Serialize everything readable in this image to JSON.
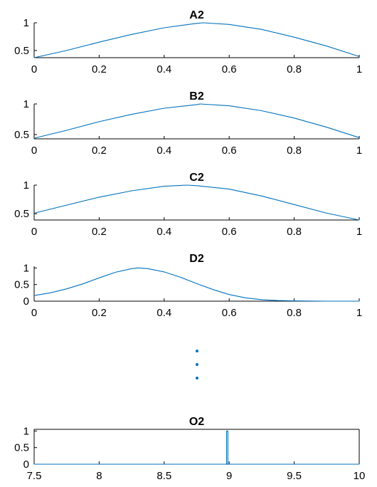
{
  "colors": {
    "line": "#0072BD",
    "axes": "#000000"
  },
  "ellipsis": {
    "dots": 3
  },
  "chart_data": [
    {
      "type": "line",
      "title": "A2",
      "xlim": [
        0,
        1
      ],
      "ylim": [
        0.37,
        1.0
      ],
      "xticks": [
        0,
        0.2,
        0.4,
        0.6,
        0.8,
        1
      ],
      "xtick_labels": [
        "0",
        "0.2",
        "0.4",
        "0.6",
        "0.8",
        "1"
      ],
      "yticks": [
        0.5,
        1
      ],
      "ytick_labels": [
        "0.5",
        "1"
      ],
      "x": [
        0,
        0.1,
        0.2,
        0.3,
        0.4,
        0.5,
        0.52,
        0.6,
        0.7,
        0.8,
        0.9,
        1.0
      ],
      "y": [
        0.37,
        0.5,
        0.65,
        0.79,
        0.91,
        0.99,
        1.0,
        0.97,
        0.88,
        0.74,
        0.58,
        0.39
      ]
    },
    {
      "type": "line",
      "title": "B2",
      "xlim": [
        0,
        1
      ],
      "ylim": [
        0.43,
        1.0
      ],
      "xticks": [
        0,
        0.2,
        0.4,
        0.6,
        0.8,
        1
      ],
      "xtick_labels": [
        "0",
        "0.2",
        "0.4",
        "0.6",
        "0.8",
        "1"
      ],
      "yticks": [
        0.5,
        1
      ],
      "ytick_labels": [
        "0.5",
        "1"
      ],
      "x": [
        0,
        0.1,
        0.2,
        0.3,
        0.4,
        0.5,
        0.51,
        0.6,
        0.7,
        0.8,
        0.9,
        1.0
      ],
      "y": [
        0.44,
        0.57,
        0.71,
        0.83,
        0.93,
        0.99,
        1.0,
        0.97,
        0.89,
        0.77,
        0.62,
        0.45
      ]
    },
    {
      "type": "line",
      "title": "C2",
      "xlim": [
        0,
        1
      ],
      "ylim": [
        0.39,
        1.0
      ],
      "xticks": [
        0,
        0.2,
        0.4,
        0.6,
        0.8,
        1
      ],
      "xtick_labels": [
        "0",
        "0.2",
        "0.4",
        "0.6",
        "0.8",
        "1"
      ],
      "yticks": [
        0.5,
        1
      ],
      "ytick_labels": [
        "0.5",
        "1"
      ],
      "x": [
        0,
        0.1,
        0.2,
        0.3,
        0.4,
        0.47,
        0.5,
        0.6,
        0.7,
        0.8,
        0.9,
        1.0
      ],
      "y": [
        0.51,
        0.65,
        0.79,
        0.9,
        0.98,
        1.0,
        0.99,
        0.93,
        0.81,
        0.66,
        0.51,
        0.39
      ]
    },
    {
      "type": "line",
      "title": "D2",
      "xlim": [
        0,
        1
      ],
      "ylim": [
        0,
        1.05
      ],
      "xticks": [
        0,
        0.2,
        0.4,
        0.6,
        0.8,
        1
      ],
      "xtick_labels": [
        "0",
        "0.2",
        "0.4",
        "0.6",
        "0.8",
        "1"
      ],
      "yticks": [
        0,
        0.5,
        1
      ],
      "ytick_labels": [
        "0",
        "0.5",
        "1"
      ],
      "x": [
        0,
        0.05,
        0.1,
        0.15,
        0.2,
        0.25,
        0.3,
        0.32,
        0.35,
        0.4,
        0.45,
        0.5,
        0.55,
        0.6,
        0.65,
        0.7,
        0.75,
        0.8,
        0.9,
        1.0
      ],
      "y": [
        0.17,
        0.25,
        0.37,
        0.52,
        0.7,
        0.87,
        0.98,
        1.0,
        0.98,
        0.88,
        0.72,
        0.53,
        0.35,
        0.2,
        0.1,
        0.045,
        0.02,
        0.008,
        0.001,
        0.0
      ]
    },
    {
      "type": "line",
      "title": "O2",
      "xlim": [
        7.5,
        10
      ],
      "ylim": [
        0,
        1.05
      ],
      "xticks": [
        7.5,
        8,
        8.5,
        9,
        9.5,
        10
      ],
      "xtick_labels": [
        "7.5",
        "8",
        "8.5",
        "9",
        "9.5",
        "10"
      ],
      "yticks": [
        0,
        0.5,
        1
      ],
      "ytick_labels": [
        "0",
        "0.5",
        "1"
      ],
      "x": [
        7.5,
        8.98,
        8.98,
        8.99,
        8.99,
        10
      ],
      "y": [
        0,
        0,
        1.0,
        1.0,
        0,
        0
      ]
    }
  ]
}
